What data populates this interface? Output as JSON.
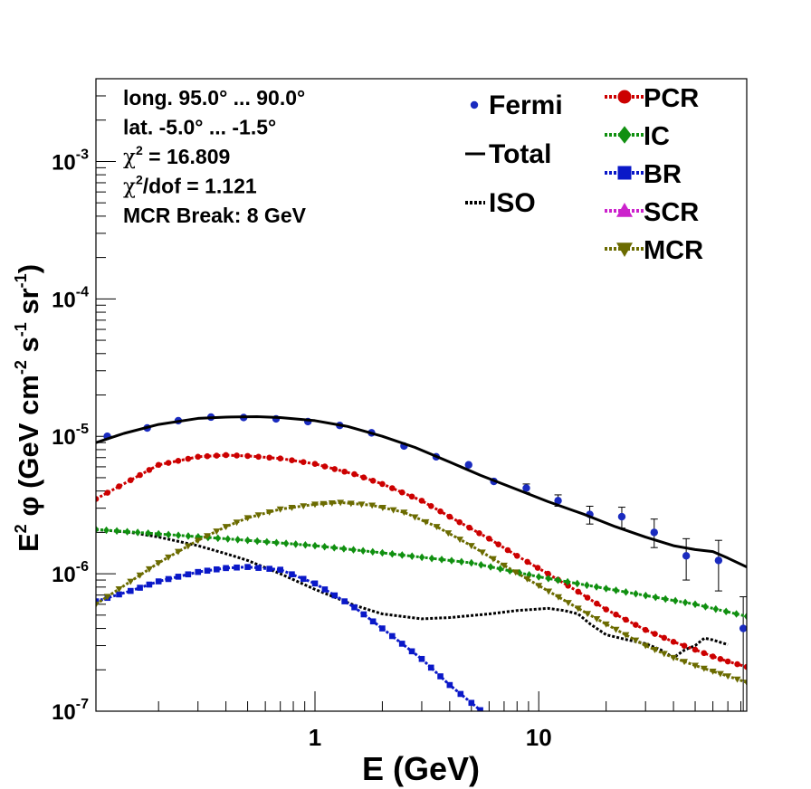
{
  "chart_data": {
    "type": "scatter",
    "xlabel": "E (GeV)",
    "ylabel_parts": [
      "E",
      "2",
      " φ (GeV cm",
      "-2",
      " s",
      "-1",
      " sr",
      "-1",
      ")"
    ],
    "xscale": "log",
    "yscale": "log",
    "xlim": [
      0.105,
      85
    ],
    "ylim": [
      1e-07,
      0.004
    ],
    "x_tick_labels": [
      {
        "value": 1,
        "label": "1"
      },
      {
        "value": 10,
        "label": "10"
      }
    ],
    "y_tick_labels": [
      {
        "value": 1e-07,
        "base": "10",
        "exp": "-7"
      },
      {
        "value": 1e-06,
        "base": "10",
        "exp": "-6"
      },
      {
        "value": 1e-05,
        "base": "10",
        "exp": "-5"
      },
      {
        "value": 0.0001,
        "base": "10",
        "exp": "-4"
      },
      {
        "value": 0.001,
        "base": "10",
        "exp": "-3"
      }
    ],
    "info_lines": [
      {
        "text": "long. 95.0° ... 90.0°"
      },
      {
        "text": "lat. -5.0° ... -1.5°"
      },
      {
        "pre": "χ",
        "sup": "2",
        "post": " = 16.809"
      },
      {
        "pre": "χ",
        "sup": "2",
        "post": "/dof = 1.121"
      },
      {
        "text": "MCR Break:  8 GeV"
      }
    ],
    "legend": [
      {
        "name": "Fermi",
        "marker": "circle",
        "color": "#1a2bbf",
        "line": "none"
      },
      {
        "name": "Total",
        "marker": "none",
        "color": "#000000",
        "line": "solid"
      },
      {
        "name": "ISO",
        "marker": "none",
        "color": "#000000",
        "line": "dotted"
      },
      {
        "name": "PCR",
        "marker": "circle",
        "color": "#cc0000",
        "line": "dotted"
      },
      {
        "name": "IC",
        "marker": "diamond",
        "color": "#109010",
        "line": "dotted"
      },
      {
        "name": "BR",
        "marker": "square",
        "color": "#0a18c8",
        "line": "dotted"
      },
      {
        "name": "SCR",
        "marker": "triangle-up",
        "color": "#cc22cc",
        "line": "dotted"
      },
      {
        "name": "MCR",
        "marker": "triangle-down",
        "color": "#6b6b00",
        "line": "dotted"
      }
    ],
    "series": [
      {
        "name": "Fermi",
        "kind": "points",
        "color": "#1a2bbf",
        "x": [
          0.118,
          0.178,
          0.245,
          0.343,
          0.48,
          0.67,
          0.93,
          1.29,
          1.79,
          2.5,
          3.48,
          4.86,
          6.3,
          8.8,
          12.2,
          16.9,
          23.5,
          32.8,
          45.6,
          63.6,
          82
        ],
        "y": [
          1e-05,
          1.15e-05,
          1.3e-05,
          1.38e-05,
          1.37e-05,
          1.34e-05,
          1.28e-05,
          1.2e-05,
          1.06e-05,
          8.5e-06,
          7.1e-06,
          6.2e-06,
          4.7e-06,
          4.2e-06,
          3.4e-06,
          2.7e-06,
          2.6e-06,
          2e-06,
          1.35e-06,
          1.25e-06,
          4e-07
        ],
        "yerr_low": [
          0,
          0,
          0,
          0,
          0,
          0,
          0,
          0,
          0,
          0,
          0,
          0,
          0,
          3e-07,
          3e-07,
          4e-07,
          4.5e-07,
          4.5e-07,
          4.5e-07,
          5e-07,
          3e-07
        ],
        "yerr_high": [
          0,
          0,
          0,
          0,
          0,
          0,
          0,
          0,
          0,
          0,
          0,
          0,
          0,
          3e-07,
          3.5e-07,
          4e-07,
          4.5e-07,
          5e-07,
          4.5e-07,
          5e-07,
          2.8e-07
        ]
      },
      {
        "name": "Total",
        "kind": "line",
        "style": "solid",
        "color": "#000000",
        "x": [
          0.105,
          0.14,
          0.2,
          0.3,
          0.4,
          0.55,
          0.7,
          1.0,
          1.4,
          2.0,
          2.8,
          4.0,
          5.5,
          8.0,
          11.0,
          16.0,
          22.0,
          30.0,
          40.0,
          50.0,
          60.0,
          70.0,
          85.0
        ],
        "y": [
          9e-06,
          1.05e-05,
          1.22e-05,
          1.35e-05,
          1.38e-05,
          1.39e-05,
          1.37e-05,
          1.3e-05,
          1.18e-05,
          1e-05,
          8.3e-06,
          6.5e-06,
          5.2e-06,
          4.1e-06,
          3.35e-06,
          2.7e-06,
          2.2e-06,
          1.85e-06,
          1.6e-06,
          1.5e-06,
          1.45e-06,
          1.3e-06,
          1.12e-06
        ]
      },
      {
        "name": "ISO",
        "kind": "line",
        "style": "dotted",
        "color": "#000000",
        "x": [
          0.105,
          0.15,
          0.2,
          0.3,
          0.4,
          0.5,
          0.7,
          1.0,
          1.5,
          2.0,
          3.0,
          4.0,
          6.0,
          8.0,
          11.0,
          13.0,
          15.0,
          17.0,
          20.0,
          25.0,
          30.0,
          35.0,
          40.0,
          45.0,
          50.0,
          55.0,
          60.0,
          70.0
        ],
        "y": [
          2.1e-06,
          2e-06,
          1.85e-06,
          1.6e-06,
          1.4e-06,
          1.25e-06,
          1e-06,
          7.7e-07,
          5.9e-07,
          5.1e-07,
          4.7e-07,
          4.8e-07,
          5.1e-07,
          5.4e-07,
          5.6e-07,
          5.4e-07,
          5.1e-07,
          4.3e-07,
          3.6e-07,
          3.3e-07,
          3.1e-07,
          2.8e-07,
          2.45e-07,
          2.8e-07,
          3e-07,
          3.4e-07,
          3.3e-07,
          3.05e-07
        ]
      },
      {
        "name": "PCR",
        "kind": "line-markers",
        "marker": "circle",
        "color": "#cc0000",
        "x": [
          0.105,
          0.15,
          0.2,
          0.3,
          0.4,
          0.5,
          0.7,
          1.0,
          1.5,
          2.0,
          3.0,
          4.0,
          6.0,
          8.0,
          11.0,
          15.0,
          20.0,
          30.0,
          40.0,
          50.0,
          60.0,
          70.0,
          85.0
        ],
        "y": [
          3.5e-06,
          4.8e-06,
          6.2e-06,
          7.1e-06,
          7.3e-06,
          7.2e-06,
          6.9e-06,
          6.3e-06,
          5.3e-06,
          4.5e-06,
          3.4e-06,
          2.6e-06,
          1.8e-06,
          1.35e-06,
          1e-06,
          7.4e-07,
          5.5e-07,
          3.9e-07,
          3.2e-07,
          2.8e-07,
          2.5e-07,
          2.3e-07,
          2.1e-07
        ]
      },
      {
        "name": "IC",
        "kind": "line-markers",
        "marker": "diamond",
        "color": "#109010",
        "x": [
          0.105,
          0.2,
          0.5,
          1.0,
          2.0,
          5.0,
          10.0,
          20.0,
          50.0,
          85.0
        ],
        "y": [
          2.1e-06,
          1.95e-06,
          1.75e-06,
          1.6e-06,
          1.42e-06,
          1.2e-06,
          9.5e-07,
          7.8e-07,
          6e-07,
          4.9e-07
        ]
      },
      {
        "name": "BR",
        "kind": "line-markers",
        "marker": "square",
        "color": "#0a18c8",
        "x": [
          0.105,
          0.15,
          0.2,
          0.3,
          0.4,
          0.5,
          0.7,
          1.0,
          1.5,
          2.0,
          3.0,
          4.0,
          5.0,
          6.0
        ],
        "y": [
          6.3e-07,
          7.5e-07,
          8.8e-07,
          1.03e-06,
          1.1e-06,
          1.12e-06,
          1.07e-06,
          8.5e-07,
          5.7e-07,
          4e-07,
          2.4e-07,
          1.55e-07,
          1.15e-07,
          9e-08
        ]
      },
      {
        "name": "MCR",
        "kind": "line-markers",
        "marker": "triangle-down",
        "color": "#6b6b00",
        "x": [
          0.105,
          0.15,
          0.2,
          0.3,
          0.4,
          0.5,
          0.7,
          1.0,
          1.3,
          1.8,
          2.5,
          3.5,
          5.0,
          7.0,
          10.0,
          15.0,
          20.0,
          30.0,
          40.0,
          50.0,
          60.0,
          70.0,
          85.0
        ],
        "y": [
          6e-07,
          8.8e-07,
          1.2e-06,
          1.75e-06,
          2.2e-06,
          2.55e-06,
          2.95e-06,
          3.2e-06,
          3.3e-06,
          3.15e-06,
          2.8e-06,
          2.2e-06,
          1.6e-06,
          1.15e-06,
          8.2e-07,
          5.6e-07,
          4.3e-07,
          3e-07,
          2.45e-07,
          2.15e-07,
          1.95e-07,
          1.8e-07,
          1.62e-07
        ]
      }
    ]
  }
}
